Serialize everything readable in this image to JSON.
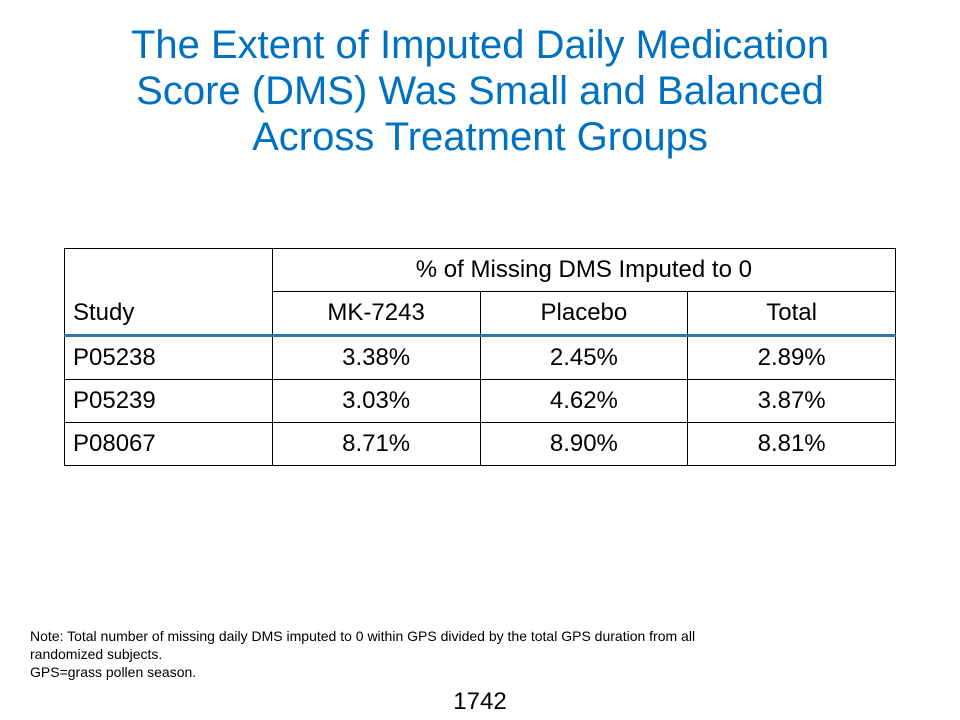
{
  "title": {
    "line1": "The Extent of Imputed Daily Medication",
    "line2": "Score (DMS) Was Small and Balanced",
    "line3": "Across Treatment Groups"
  },
  "table": {
    "study_header": "Study",
    "group_header": "% of Missing DMS Imputed to 0",
    "column_headers": [
      "MK-7243",
      "Placebo",
      "Total"
    ],
    "rows": [
      {
        "study": "P05238",
        "values": [
          "3.38%",
          "2.45%",
          "2.89%"
        ]
      },
      {
        "study": "P05239",
        "values": [
          "3.03%",
          "4.62%",
          "3.87%"
        ]
      },
      {
        "study": "P08067",
        "values": [
          "8.71%",
          "8.90%",
          "8.81%"
        ]
      }
    ]
  },
  "note": {
    "line1": "Note: Total number of missing daily DMS imputed to 0 within GPS divided by the total GPS duration from all",
    "line2": "randomized subjects.",
    "line3": "GPS=grass pollen season."
  },
  "page_number": "1742",
  "colors": {
    "title": "#0070c0",
    "header_rule": "#2e75b6"
  }
}
